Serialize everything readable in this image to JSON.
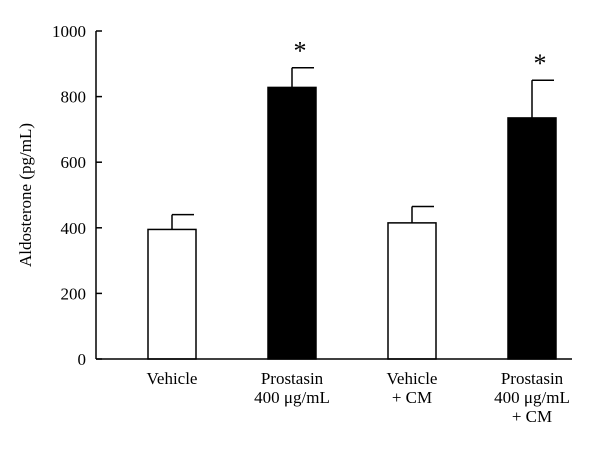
{
  "chart_data": {
    "type": "bar",
    "title": "",
    "ylabel": "Aldosterone (pg/mL)",
    "xlabel": "",
    "ylim": [
      0,
      1000
    ],
    "yticks": [
      "0",
      "200",
      "400",
      "600",
      "800",
      "1000"
    ],
    "categories": [
      [
        "Vehicle"
      ],
      [
        "Prostasin",
        "400 μg/mL"
      ],
      [
        "Vehicle",
        "+ CM"
      ],
      [
        "Prostasin",
        "400 μg/mL",
        "+ CM"
      ]
    ],
    "values": [
      395,
      828,
      415,
      735
    ],
    "errors": [
      45,
      60,
      50,
      115
    ],
    "fills": [
      "open",
      "filled",
      "open",
      "filled"
    ],
    "annotations": [
      "",
      "*",
      "",
      "*"
    ],
    "colors": {
      "open": "#ffffff",
      "filled": "#000000",
      "axis": "#000000"
    }
  }
}
